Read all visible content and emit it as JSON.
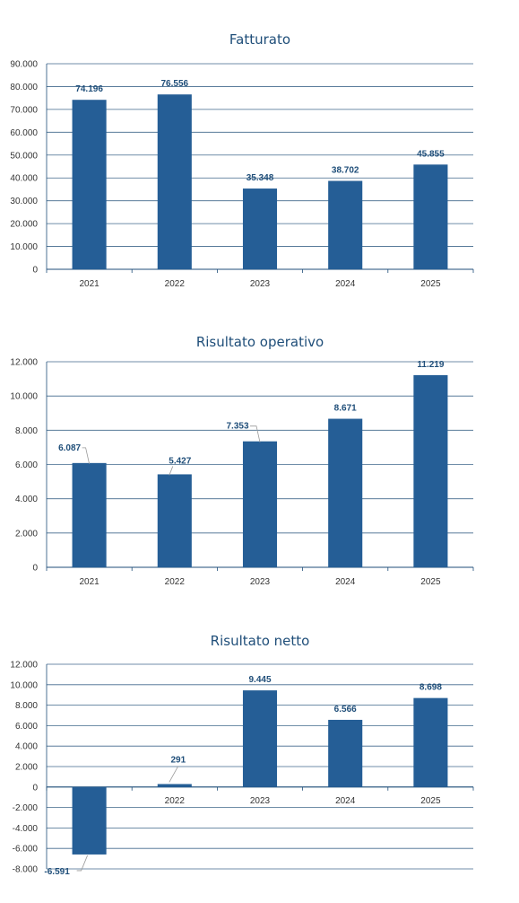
{
  "colors": {
    "bar": "#255e96",
    "grid": "#1f4e79",
    "title": "#1f4e79",
    "label": "#1f4e79"
  },
  "chart_data": [
    {
      "type": "bar",
      "title": "Fatturato",
      "categories": [
        "2021",
        "2022",
        "2023",
        "2024",
        "2025"
      ],
      "values": [
        74196,
        76556,
        35348,
        38702,
        45855
      ],
      "value_labels": [
        "74.196",
        "76.556",
        "35.348",
        "38.702",
        "45.855"
      ],
      "ylim": [
        0,
        90000
      ],
      "yticks": [
        0,
        10000,
        20000,
        30000,
        40000,
        50000,
        60000,
        70000,
        80000,
        90000
      ],
      "ytick_labels": [
        "0",
        "10.000",
        "20.000",
        "30.000",
        "40.000",
        "50.000",
        "60.000",
        "70.000",
        "80.000",
        "90.000"
      ],
      "grid": true,
      "legend": "none"
    },
    {
      "type": "bar",
      "title": "Risultato operativo",
      "categories": [
        "2021",
        "2022",
        "2023",
        "2024",
        "2025"
      ],
      "values": [
        6087,
        5427,
        7353,
        8671,
        11219
      ],
      "value_labels": [
        "6.087",
        "5.427",
        "7.353",
        "8.671",
        "11.219"
      ],
      "ylim": [
        0,
        12000
      ],
      "yticks": [
        0,
        2000,
        4000,
        6000,
        8000,
        10000,
        12000
      ],
      "ytick_labels": [
        "0",
        "2.000",
        "4.000",
        "6.000",
        "8.000",
        "10.000",
        "12.000"
      ],
      "grid": true,
      "legend": "none"
    },
    {
      "type": "bar",
      "title": "Risultato netto",
      "categories": [
        "",
        "2022",
        "2023",
        "2024",
        "2025"
      ],
      "values": [
        -6591,
        291,
        9445,
        6566,
        8698
      ],
      "value_labels": [
        "-6.591",
        "291",
        "9.445",
        "6.566",
        "8.698"
      ],
      "ylim": [
        -8000,
        12000
      ],
      "yticks": [
        -8000,
        -6000,
        -4000,
        -2000,
        0,
        2000,
        4000,
        6000,
        8000,
        10000,
        12000
      ],
      "ytick_labels": [
        "-8.000",
        "-6.000",
        "-4.000",
        "-2.000",
        "0",
        "2.000",
        "4.000",
        "6.000",
        "8.000",
        "10.000",
        "12.000"
      ],
      "grid": true,
      "legend": "none"
    }
  ]
}
